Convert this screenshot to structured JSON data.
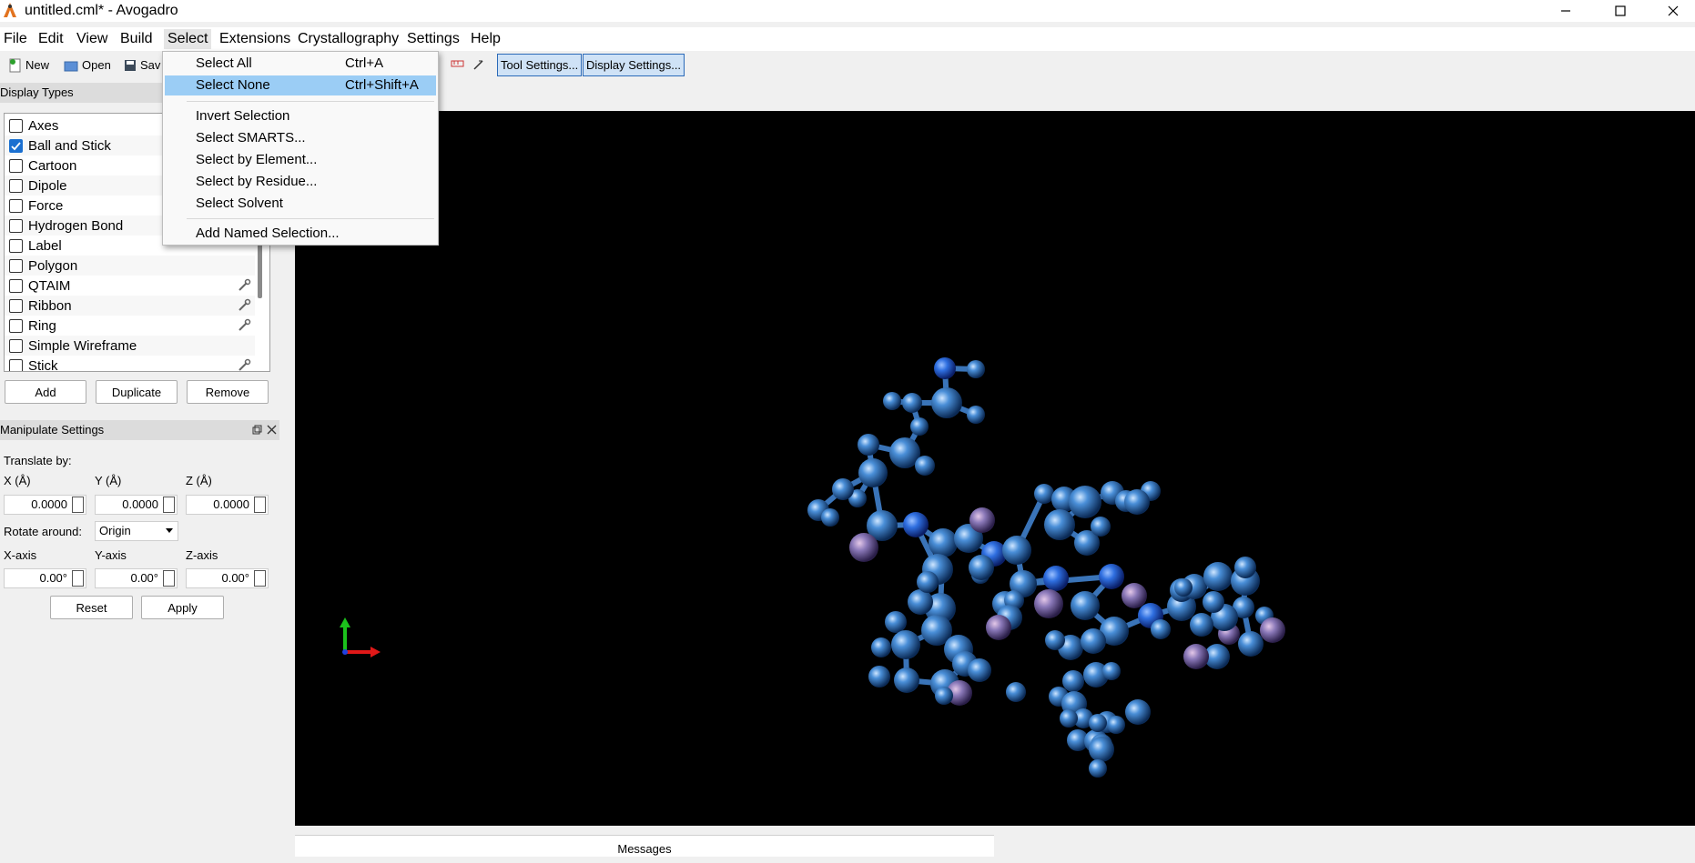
{
  "window": {
    "title": "untitled.cml* - Avogadro"
  },
  "menubar": {
    "items": [
      "File",
      "Edit",
      "View",
      "Build",
      "Select",
      "Extensions",
      "Crystallography",
      "Settings",
      "Help"
    ]
  },
  "toolbar": {
    "new_label": "New",
    "open_label": "Open",
    "save_label": "Sav",
    "tool_settings_label": "Tool Settings...",
    "display_settings_label": "Display Settings..."
  },
  "display_types": {
    "header": "Display Types",
    "items": [
      {
        "label": "Axes",
        "checked": false
      },
      {
        "label": "Ball and Stick",
        "checked": true
      },
      {
        "label": "Cartoon",
        "checked": false
      },
      {
        "label": "Dipole",
        "checked": false
      },
      {
        "label": "Force",
        "checked": false
      },
      {
        "label": "Hydrogen Bond",
        "checked": false
      },
      {
        "label": "Label",
        "checked": false
      },
      {
        "label": "Polygon",
        "checked": false
      },
      {
        "label": "QTAIM",
        "checked": false
      },
      {
        "label": "Ribbon",
        "checked": false
      },
      {
        "label": "Ring",
        "checked": false
      },
      {
        "label": "Simple Wireframe",
        "checked": false
      },
      {
        "label": "Stick",
        "checked": false
      }
    ],
    "add_label": "Add",
    "duplicate_label": "Duplicate",
    "remove_label": "Remove"
  },
  "manipulate": {
    "header": "Manipulate Settings",
    "translate_label": "Translate by:",
    "x_label": "X (Å)",
    "y_label": "Y (Å)",
    "z_label": "Z (Å)",
    "x_value": "0.0000",
    "y_value": "0.0000",
    "z_value": "0.0000",
    "rotate_label": "Rotate around:",
    "rotate_value": "Origin",
    "xaxis_label": "X-axis",
    "yaxis_label": "Y-axis",
    "zaxis_label": "Z-axis",
    "xaxis_value": "0.00°",
    "yaxis_value": "0.00°",
    "zaxis_value": "0.00°",
    "reset_label": "Reset",
    "apply_label": "Apply"
  },
  "select_menu": {
    "items": [
      {
        "label": "Select All",
        "shortcut": "Ctrl+A"
      },
      {
        "label": "Select None",
        "shortcut": "Ctrl+Shift+A"
      },
      {
        "label": "Invert Selection",
        "shortcut": ""
      },
      {
        "label": "Select SMARTS...",
        "shortcut": ""
      },
      {
        "label": "Select by Element...",
        "shortcut": ""
      },
      {
        "label": "Select by Residue...",
        "shortcut": ""
      },
      {
        "label": "Select Solvent",
        "shortcut": ""
      },
      {
        "label": "Add Named Selection...",
        "shortcut": ""
      }
    ],
    "highlighted": "Select None"
  },
  "messages": {
    "label": "Messages"
  },
  "colors": {
    "accent": "#1a6fd0",
    "menu_highlight": "#9bcdf5",
    "viewport_bg": "#000000",
    "atom_blue": "#4a8fd8"
  }
}
